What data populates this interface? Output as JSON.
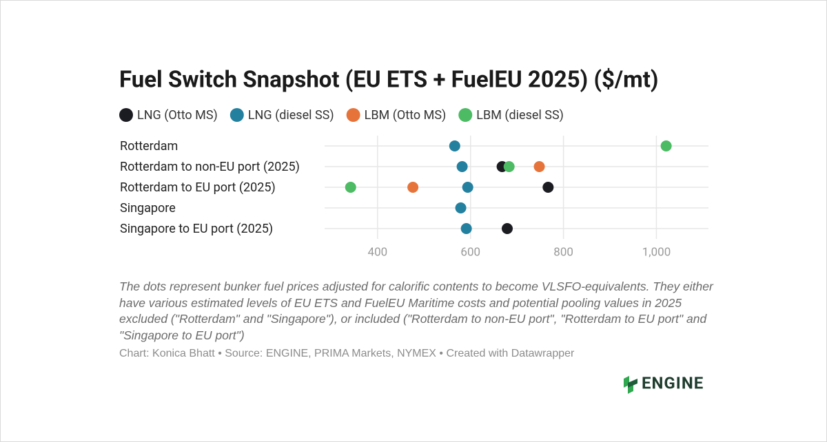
{
  "chart_data": {
    "type": "dot",
    "title": "Fuel Switch Snapshot (EU ETS + FuelEU 2025) ($/mt)",
    "categories": [
      "Rotterdam",
      "Rotterdam to non-EU port (2025)",
      "Rotterdam to EU port (2025)",
      "Singapore",
      "Singapore to EU port (2025)"
    ],
    "series": [
      {
        "name": "LNG (Otto MS)",
        "color": "#1b1b22",
        "values": [
          null,
          668,
          767,
          null,
          679
        ]
      },
      {
        "name": "LNG (diesel SS)",
        "color": "#23809f",
        "values": [
          566,
          582,
          594,
          579,
          591
        ]
      },
      {
        "name": "LBM (Otto MS)",
        "color": "#e6743a",
        "values": [
          null,
          748,
          476,
          null,
          null
        ]
      },
      {
        "name": "LBM (diesel SS)",
        "color": "#4cbb63",
        "values": [
          1021,
          683,
          342,
          null,
          null
        ]
      }
    ],
    "xlim": [
      286,
      1112
    ],
    "xticks": [
      400,
      600,
      800,
      {
        "value": 1000,
        "label": "1,000"
      }
    ],
    "grid": true,
    "description": "The dots represent bunker fuel prices adjusted for calorific contents to become VLSFO-equivalents. They either have various estimated levels of EU ETS and FuelEU Maritime costs and potential pooling values in 2025 excluded (\"Rotterdam\" and \"Singapore\"), or included (\"Rotterdam to non-EU port\", \"Rotterdam to EU port\" and \"Singapore to EU port\")",
    "source": "Chart: Konica Bhatt • Source: ENGINE, PRIMA Markets, NYMEX • Created with Datawrapper"
  },
  "logo": "ENGINE"
}
